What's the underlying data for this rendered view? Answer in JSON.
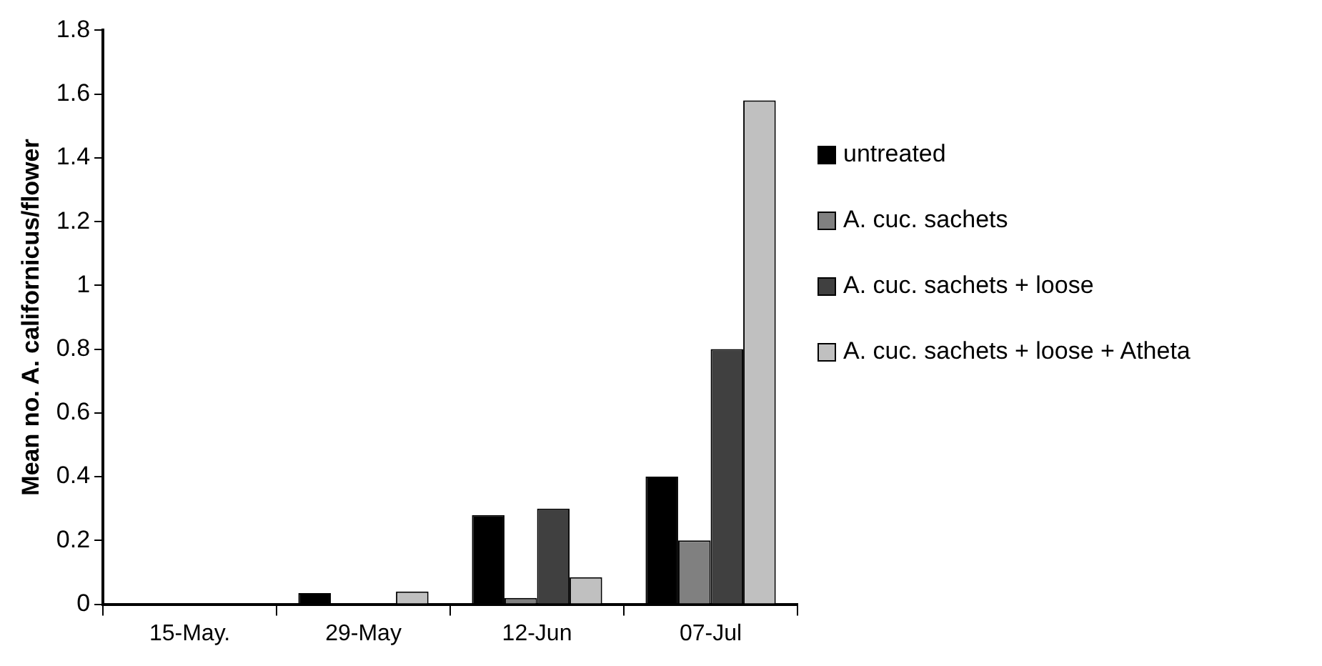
{
  "chart_data": {
    "type": "bar",
    "ylabel": "Mean no. A. californicus/flower",
    "categories": [
      "15-May.",
      "29-May",
      "12-Jun",
      "07-Jul"
    ],
    "series": [
      {
        "name": "untreated",
        "color": "#000000",
        "values": [
          0,
          0.035,
          0.28,
          0.4
        ]
      },
      {
        "name": "A. cuc. sachets",
        "color": "#808080",
        "values": [
          0,
          0,
          0.02,
          0.2
        ]
      },
      {
        "name": "A. cuc. sachets + loose",
        "color": "#404040",
        "values": [
          0,
          0,
          0.3,
          0.8
        ]
      },
      {
        "name": "A. cuc. sachets + loose + Atheta",
        "color": "#c0c0c0",
        "values": [
          0,
          0.04,
          0.085,
          1.58
        ]
      }
    ],
    "ylim": [
      0,
      1.8
    ],
    "yticks": [
      0,
      0.2,
      0.4,
      0.6,
      0.8,
      1,
      1.2,
      1.4,
      1.6,
      1.8
    ],
    "grid": false,
    "legend": "right"
  }
}
